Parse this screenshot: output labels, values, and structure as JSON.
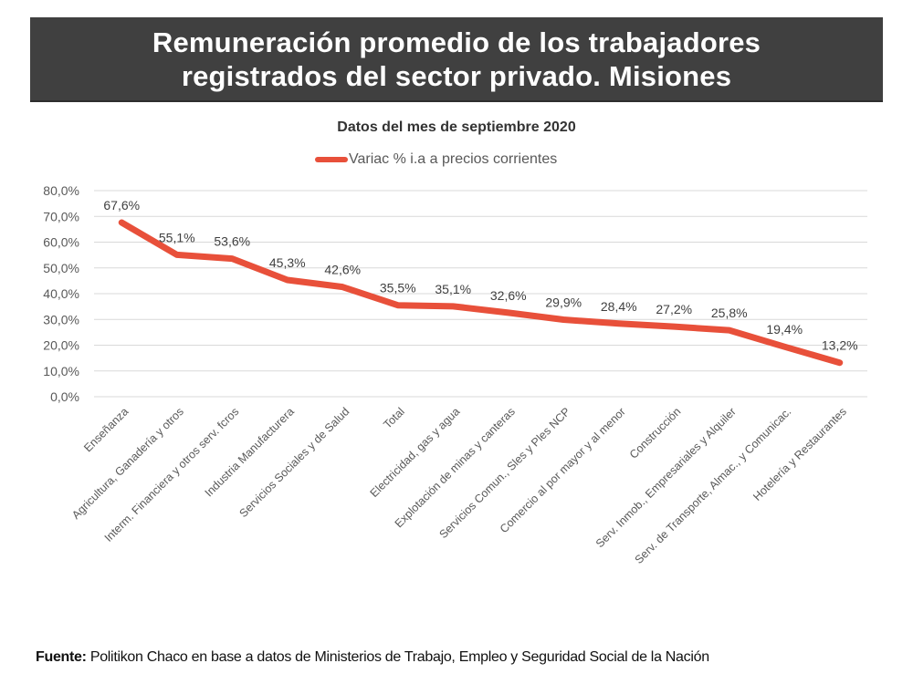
{
  "header": {
    "title_line1": "Remuneración promedio de los trabajadores",
    "title_line2": "registrados del sector privado. Misiones"
  },
  "footer": {
    "label": "Fuente:",
    "text": " Politikon Chaco en base a datos de Ministerios de Trabajo, Empleo y Seguridad Social de la Nación"
  },
  "colors": {
    "series": "#e8503a",
    "header_bg": "#404040",
    "gridline": "#d9d9d9"
  },
  "chart_data": {
    "type": "line",
    "title": "Datos del mes de septiembre 2020",
    "xlabel": "",
    "ylabel": "",
    "ylim": [
      0,
      80
    ],
    "yticks": [
      0,
      10,
      20,
      30,
      40,
      50,
      60,
      70,
      80
    ],
    "ytick_labels": [
      "0,0%",
      "10,0%",
      "20,0%",
      "30,0%",
      "40,0%",
      "50,0%",
      "60,0%",
      "70,0%",
      "80,0%"
    ],
    "grid": true,
    "legend_position": "top-center",
    "categories": [
      "Enseñanza",
      "Agricultura, Ganadería y otros",
      "Interm. Financiera y otros serv. fcros",
      "Industria Manufacturera",
      "Servicios Sociales y de Salud",
      "Total",
      "Electricidad, gas y agua",
      "Explotación de minas y canteras",
      "Servicios Comun., Sles y Ples NCP",
      "Comercio al por mayor y al menor",
      "Construcción",
      "Serv. Inmob., Empresariales y Alquiler",
      "Serv. de Transporte, Almac., y Comunicac.",
      "Hotelería y Restaurantes"
    ],
    "series": [
      {
        "name": "Variac % i.a a precios corrientes",
        "values": [
          67.6,
          55.1,
          53.6,
          45.3,
          42.6,
          35.5,
          35.1,
          32.6,
          29.9,
          28.4,
          27.2,
          25.8,
          19.4,
          13.2
        ],
        "data_labels": [
          "67,6%",
          "55,1%",
          "53,6%",
          "45,3%",
          "42,6%",
          "35,5%",
          "35,1%",
          "32,6%",
          "29,9%",
          "28,4%",
          "27,2%",
          "25,8%",
          "19,4%",
          "13,2%"
        ]
      }
    ]
  }
}
